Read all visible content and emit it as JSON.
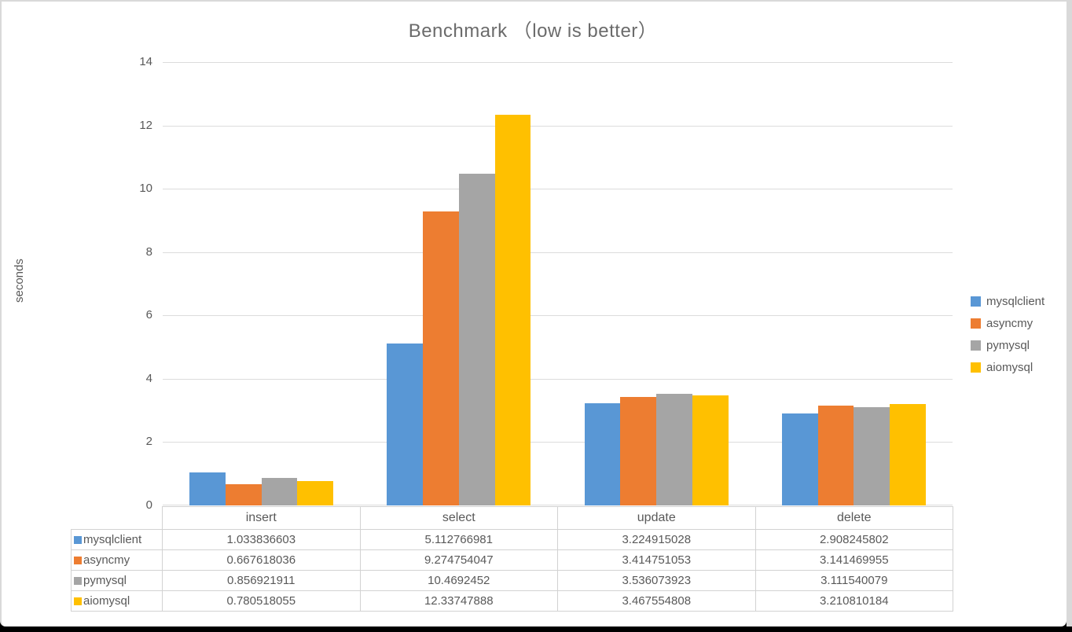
{
  "window": {
    "title": "Benchmark （low is better）"
  },
  "chart_data": {
    "type": "bar",
    "title": "Benchmark （low is better）",
    "ylabel": "seconds",
    "xlabel": "",
    "categories": [
      "insert",
      "select",
      "update",
      "delete"
    ],
    "series": [
      {
        "name": "mysqlclient",
        "color": "#5997d5",
        "values": [
          1.033836603,
          5.112766981,
          3.224915028,
          2.908245802
        ],
        "values_text": [
          "1.033836603",
          "5.112766981",
          "3.224915028",
          "2.908245802"
        ]
      },
      {
        "name": "asyncmy",
        "color": "#ed7d31",
        "values": [
          0.667618036,
          9.274754047,
          3.414751053,
          3.141469955
        ],
        "values_text": [
          "0.667618036",
          "9.274754047",
          "3.414751053",
          "3.141469955"
        ]
      },
      {
        "name": "pymysql",
        "color": "#a5a5a5",
        "values": [
          0.856921911,
          10.4692452,
          3.536073923,
          3.111540079
        ],
        "values_text": [
          "0.856921911",
          "10.4692452",
          "3.536073923",
          "3.111540079"
        ]
      },
      {
        "name": "aiomysql",
        "color": "#ffc000",
        "values": [
          0.780518055,
          12.33747888,
          3.467554808,
          3.210810184
        ],
        "values_text": [
          "0.780518055",
          "12.33747888",
          "3.467554808",
          "3.210810184"
        ]
      }
    ],
    "ylim": [
      0,
      14
    ],
    "yticks": [
      0,
      2,
      4,
      6,
      8,
      10,
      12,
      14
    ],
    "grid": true,
    "legend_position": "right",
    "data_table_shown": true
  }
}
